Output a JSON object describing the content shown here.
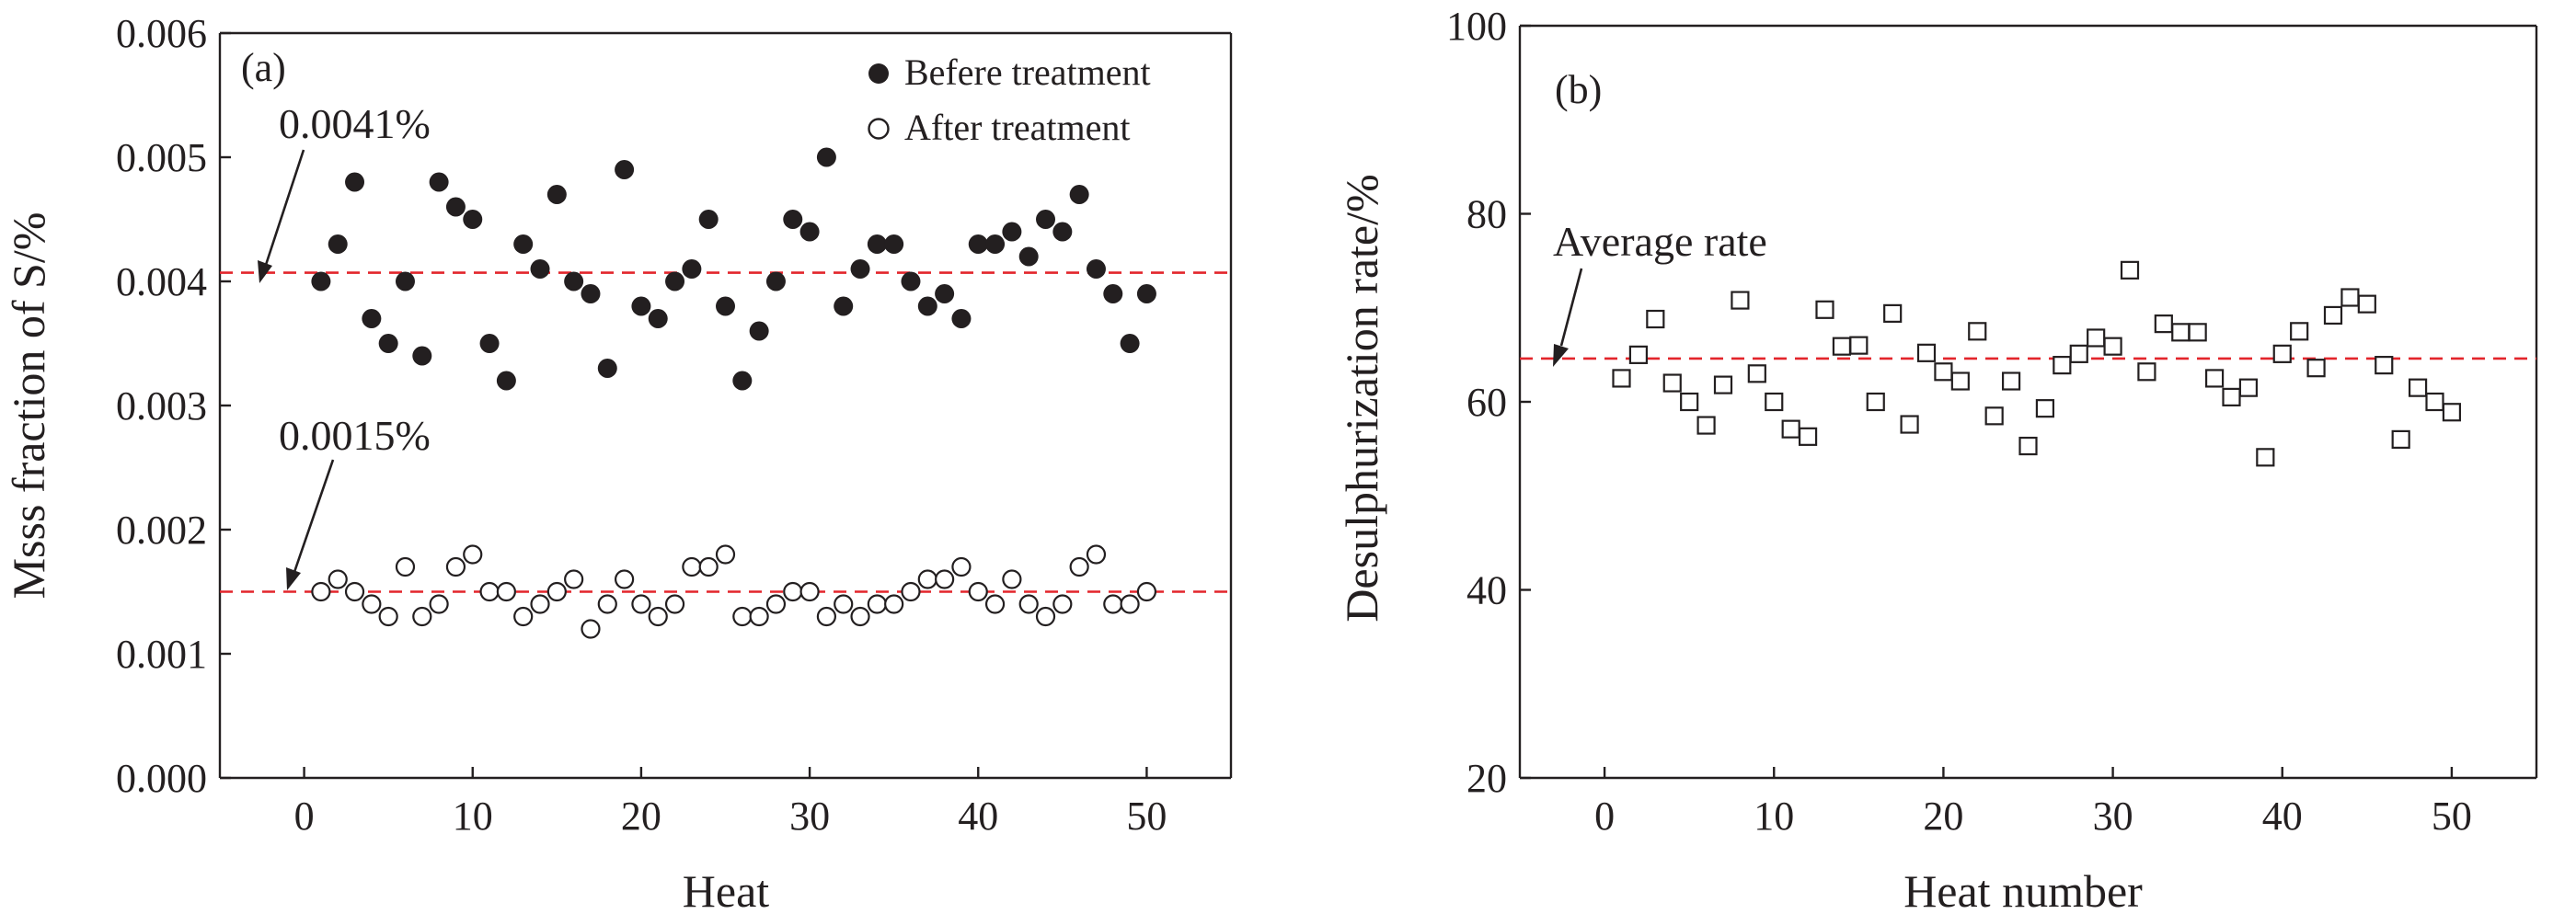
{
  "colors": {
    "ink": "#231f20",
    "reference_line": "#e3252b",
    "background": "#ffffff"
  },
  "chart_data": [
    {
      "type": "scatter",
      "panel_label": "(a)",
      "xlabel": "Heat",
      "ylabel": "Msss fraction of S/%",
      "xlim": [
        -5,
        55
      ],
      "ylim": [
        0,
        0.006
      ],
      "x_ticks": [
        "0",
        "10",
        "20",
        "30",
        "40",
        "50"
      ],
      "y_ticks": [
        "0.000",
        "0.001",
        "0.002",
        "0.003",
        "0.004",
        "0.005",
        "0.006"
      ],
      "legend_position": "top-right",
      "grid": false,
      "series": [
        {
          "name": "Befere treatment",
          "marker": "filled-circle",
          "x": [
            1,
            2,
            3,
            4,
            5,
            6,
            7,
            8,
            9,
            10,
            11,
            12,
            13,
            14,
            15,
            16,
            17,
            18,
            19,
            20,
            21,
            22,
            23,
            24,
            25,
            26,
            27,
            28,
            29,
            30,
            31,
            32,
            33,
            34,
            35,
            36,
            37,
            38,
            39,
            40,
            41,
            42,
            43,
            44,
            45,
            46,
            47,
            48,
            49,
            50
          ],
          "y": [
            0.004,
            0.0043,
            0.0048,
            0.0037,
            0.0035,
            0.004,
            0.0034,
            0.0048,
            0.0046,
            0.0045,
            0.0035,
            0.0032,
            0.0043,
            0.0041,
            0.0047,
            0.004,
            0.0039,
            0.0033,
            0.0049,
            0.0038,
            0.0037,
            0.004,
            0.0041,
            0.0045,
            0.0038,
            0.0032,
            0.0036,
            0.004,
            0.0045,
            0.0044,
            0.005,
            0.0038,
            0.0041,
            0.0043,
            0.0043,
            0.004,
            0.0038,
            0.0039,
            0.0037,
            0.0043,
            0.0043,
            0.0044,
            0.0042,
            0.0045,
            0.0044,
            0.0047,
            0.0041,
            0.0039,
            0.0035,
            0.0039
          ]
        },
        {
          "name": "After treatment",
          "marker": "open-circle",
          "x": [
            1,
            2,
            3,
            4,
            5,
            6,
            7,
            8,
            9,
            10,
            11,
            12,
            13,
            14,
            15,
            16,
            17,
            18,
            19,
            20,
            21,
            22,
            23,
            24,
            25,
            26,
            27,
            28,
            29,
            30,
            31,
            32,
            33,
            34,
            35,
            36,
            37,
            38,
            39,
            40,
            41,
            42,
            43,
            44,
            45,
            46,
            47,
            48,
            49,
            50
          ],
          "y": [
            0.0015,
            0.0016,
            0.0015,
            0.0014,
            0.0013,
            0.0017,
            0.0013,
            0.0014,
            0.0017,
            0.0018,
            0.0015,
            0.0015,
            0.0013,
            0.0014,
            0.0015,
            0.0016,
            0.0012,
            0.0014,
            0.0016,
            0.0014,
            0.0013,
            0.0014,
            0.0017,
            0.0017,
            0.0018,
            0.0013,
            0.0013,
            0.0014,
            0.0015,
            0.0015,
            0.0013,
            0.0014,
            0.0013,
            0.0014,
            0.0014,
            0.0015,
            0.0016,
            0.0016,
            0.0017,
            0.0015,
            0.0014,
            0.0016,
            0.0014,
            0.0013,
            0.0014,
            0.0017,
            0.0018,
            0.0014,
            0.0014,
            0.0015
          ]
        }
      ],
      "reference_lines": [
        {
          "y": 0.00407,
          "label": "0.0041%"
        },
        {
          "y": 0.0015,
          "label": "0.0015%"
        }
      ]
    },
    {
      "type": "scatter",
      "panel_label": "(b)",
      "xlabel": "Heat number",
      "ylabel": "Desulphurization rate/%",
      "xlim": [
        -5,
        55
      ],
      "ylim": [
        20,
        100
      ],
      "x_ticks": [
        "0",
        "10",
        "20",
        "30",
        "40",
        "50"
      ],
      "y_ticks": [
        "20",
        "40",
        "60",
        "80",
        "100"
      ],
      "grid": false,
      "series": [
        {
          "marker": "open-square",
          "x": [
            1,
            2,
            3,
            4,
            5,
            6,
            7,
            8,
            9,
            10,
            11,
            12,
            13,
            14,
            15,
            16,
            17,
            18,
            19,
            20,
            21,
            22,
            23,
            24,
            25,
            26,
            27,
            28,
            29,
            30,
            31,
            32,
            33,
            34,
            35,
            36,
            37,
            38,
            39,
            40,
            41,
            42,
            43,
            44,
            45,
            46,
            47,
            48,
            49,
            50
          ],
          "y": [
            62.5,
            65,
            68.8,
            62,
            60,
            57.5,
            61.8,
            70.8,
            63,
            60,
            57.1,
            56.3,
            69.8,
            65.9,
            66,
            60,
            69.4,
            57.6,
            65.2,
            63.2,
            62.2,
            67.5,
            58.5,
            62.2,
            55.3,
            59.3,
            63.9,
            65.1,
            66.8,
            65.9,
            74,
            63.2,
            68.3,
            67.4,
            67.4,
            62.5,
            60.5,
            61.5,
            54.1,
            65.1,
            67.5,
            63.6,
            69.2,
            71.1,
            70.4,
            63.9,
            56,
            61.5,
            60,
            58.9
          ]
        }
      ],
      "reference_lines": [
        {
          "y": 64.6,
          "label": "Average rate"
        }
      ]
    }
  ]
}
